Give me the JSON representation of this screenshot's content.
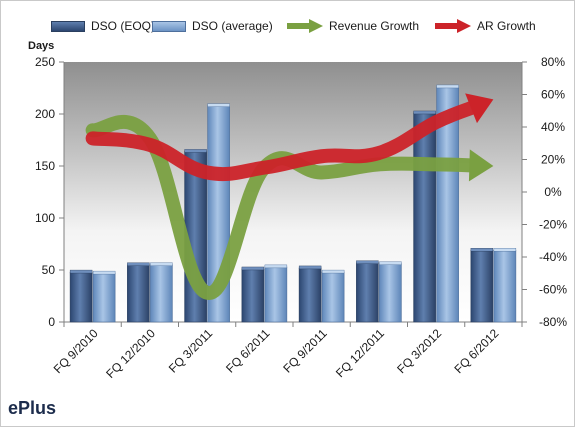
{
  "chart_data": {
    "type": "bar",
    "title": "",
    "categories": [
      "FQ 9/2010",
      "FQ 12/2010",
      "FQ 3/2011",
      "FQ 6/2011",
      "FQ 9/2011",
      "FQ 12/2011",
      "FQ 3/2012",
      "FQ 6/2012"
    ],
    "ylabel": "Days",
    "ylim": [
      0,
      250
    ],
    "yticks": [
      0,
      50,
      100,
      150,
      200,
      250
    ],
    "y2lim": [
      -0.8,
      0.8
    ],
    "y2ticks": [
      "-80%",
      "-60%",
      "-40%",
      "-20%",
      "0%",
      "20%",
      "40%",
      "60%",
      "80%"
    ],
    "legend_position": "top",
    "series": [
      {
        "name": "DSO (EOQ)",
        "kind": "bar",
        "axis": "left",
        "color": "#3e5a87",
        "values": [
          48,
          55,
          164,
          51,
          52,
          57,
          201,
          69
        ]
      },
      {
        "name": "DSO (average)",
        "kind": "bar",
        "axis": "left",
        "color": "#7fa4cf",
        "values": [
          47,
          55,
          208,
          53,
          48,
          56,
          226,
          69
        ]
      },
      {
        "name": "Revenue Growth",
        "kind": "line",
        "axis": "right",
        "color": "#7aa041",
        "values": [
          0.38,
          0.33,
          -0.62,
          0.15,
          0.12,
          0.17,
          0.17,
          0.16
        ]
      },
      {
        "name": "AR Growth",
        "kind": "line",
        "axis": "right",
        "color": "#cc2329",
        "values": [
          0.33,
          0.29,
          0.12,
          0.15,
          0.22,
          0.24,
          0.43,
          0.57
        ]
      }
    ],
    "grid": false
  },
  "company": "ePlus",
  "legend": [
    "DSO (EOQ)",
    "DSO (average)",
    "Revenue Growth",
    "AR Growth"
  ]
}
